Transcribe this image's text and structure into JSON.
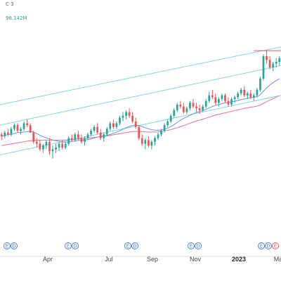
{
  "legend": {
    "header": "C·3",
    "value": "98.142M"
  },
  "colors": {
    "up": "#26a69a",
    "down": "#ef5350",
    "channel": "#7fd4e6",
    "ma_fast": "#6f8fe6",
    "ma_slow": "#ef6f8a",
    "axis": "#dddddd",
    "earnings_blue": "#4b80c9",
    "earnings_red": "#e05a5a"
  },
  "x_axis_labels": [
    {
      "text": "Apr",
      "bold": false
    },
    {
      "text": "Jul",
      "bold": false
    },
    {
      "text": "Sep",
      "bold": false
    },
    {
      "text": "Nov",
      "bold": false
    },
    {
      "text": "2023",
      "bold": true
    },
    {
      "text": "Ma",
      "bold": false
    }
  ],
  "events": [
    {
      "kind": "earnings",
      "color_key": "earnings_blue"
    },
    {
      "kind": "dividend",
      "color_key": "earnings_blue"
    },
    {
      "kind": "earnings",
      "color_key": "earnings_blue"
    },
    {
      "kind": "dividend",
      "color_key": "earnings_blue"
    },
    {
      "kind": "earnings",
      "color_key": "earnings_blue"
    },
    {
      "kind": "dividend",
      "color_key": "earnings_blue"
    },
    {
      "kind": "earnings",
      "color_key": "earnings_blue"
    },
    {
      "kind": "dividend",
      "color_key": "earnings_blue"
    },
    {
      "kind": "earnings",
      "color_key": "earnings_blue"
    },
    {
      "kind": "dividend",
      "color_key": "earnings_blue"
    },
    {
      "kind": "earnings",
      "color_key": "earnings_red"
    },
    {
      "kind": "dividend",
      "color_key": "earnings_blue"
    },
    {
      "kind": "earnings",
      "color_key": "earnings_blue"
    }
  ],
  "event_letters": {
    "earnings": "E",
    "dividend": "D"
  },
  "chart_data": {
    "type": "candlestick",
    "y_range": [
      0,
      100
    ],
    "candles": [
      [
        41,
        42,
        38,
        40
      ],
      [
        40,
        43,
        39,
        42
      ],
      [
        42,
        44,
        40,
        41
      ],
      [
        41,
        45,
        40,
        44
      ],
      [
        44,
        47,
        43,
        46
      ],
      [
        46,
        47,
        42,
        43
      ],
      [
        43,
        45,
        41,
        44
      ],
      [
        44,
        48,
        43,
        47
      ],
      [
        47,
        49,
        45,
        46
      ],
      [
        46,
        47,
        42,
        42
      ],
      [
        42,
        43,
        36,
        37
      ],
      [
        37,
        39,
        34,
        36
      ],
      [
        36,
        38,
        32,
        33
      ],
      [
        33,
        36,
        31,
        35
      ],
      [
        35,
        38,
        33,
        37
      ],
      [
        37,
        39,
        30,
        32
      ],
      [
        32,
        35,
        28,
        33
      ],
      [
        33,
        36,
        31,
        34
      ],
      [
        34,
        37,
        32,
        36
      ],
      [
        36,
        38,
        33,
        34
      ],
      [
        34,
        37,
        33,
        36
      ],
      [
        36,
        40,
        35,
        39
      ],
      [
        39,
        41,
        37,
        38
      ],
      [
        38,
        42,
        37,
        41
      ],
      [
        41,
        43,
        38,
        39
      ],
      [
        39,
        41,
        36,
        37
      ],
      [
        37,
        40,
        35,
        39
      ],
      [
        39,
        42,
        38,
        41
      ],
      [
        41,
        44,
        40,
        43
      ],
      [
        43,
        46,
        42,
        45
      ],
      [
        45,
        47,
        41,
        42
      ],
      [
        42,
        44,
        38,
        39
      ],
      [
        39,
        42,
        37,
        41
      ],
      [
        41,
        45,
        40,
        44
      ],
      [
        44,
        48,
        43,
        47
      ],
      [
        47,
        49,
        44,
        45
      ],
      [
        45,
        48,
        44,
        47
      ],
      [
        47,
        51,
        46,
        50
      ],
      [
        50,
        53,
        48,
        51
      ],
      [
        51,
        54,
        49,
        53
      ],
      [
        53,
        55,
        50,
        51
      ],
      [
        51,
        53,
        47,
        48
      ],
      [
        48,
        50,
        44,
        45
      ],
      [
        45,
        46,
        38,
        39
      ],
      [
        39,
        41,
        35,
        36
      ],
      [
        36,
        39,
        33,
        38
      ],
      [
        38,
        40,
        34,
        35
      ],
      [
        35,
        38,
        33,
        37
      ],
      [
        37,
        40,
        35,
        39
      ],
      [
        39,
        42,
        38,
        41
      ],
      [
        41,
        44,
        40,
        43
      ],
      [
        43,
        47,
        42,
        46
      ],
      [
        46,
        49,
        45,
        48
      ],
      [
        48,
        52,
        47,
        51
      ],
      [
        51,
        55,
        50,
        54
      ],
      [
        54,
        58,
        53,
        57
      ],
      [
        57,
        59,
        55,
        56
      ],
      [
        56,
        58,
        52,
        53
      ],
      [
        53,
        56,
        52,
        55
      ],
      [
        55,
        59,
        54,
        58
      ],
      [
        58,
        60,
        55,
        56
      ],
      [
        56,
        58,
        53,
        55
      ],
      [
        55,
        57,
        52,
        54
      ],
      [
        54,
        57,
        53,
        56
      ],
      [
        56,
        60,
        55,
        59
      ],
      [
        59,
        64,
        58,
        62
      ],
      [
        62,
        65,
        60,
        61
      ],
      [
        61,
        63,
        57,
        58
      ],
      [
        58,
        61,
        56,
        60
      ],
      [
        60,
        63,
        59,
        62
      ],
      [
        62,
        63,
        58,
        59
      ],
      [
        59,
        61,
        56,
        57
      ],
      [
        57,
        61,
        56,
        60
      ],
      [
        60,
        62,
        58,
        61
      ],
      [
        61,
        64,
        60,
        63
      ],
      [
        63,
        66,
        62,
        65
      ],
      [
        65,
        67,
        61,
        62
      ],
      [
        62,
        64,
        60,
        63
      ],
      [
        63,
        65,
        60,
        61
      ],
      [
        61,
        63,
        59,
        62
      ],
      [
        62,
        66,
        61,
        65
      ],
      [
        65,
        72,
        64,
        71
      ],
      [
        71,
        84,
        70,
        83
      ],
      [
        83,
        86,
        79,
        81
      ],
      [
        81,
        83,
        76,
        77
      ],
      [
        77,
        80,
        75,
        79
      ],
      [
        79,
        82,
        77,
        80
      ],
      [
        80,
        83,
        78,
        82
      ]
    ],
    "ma_fast": [
      40,
      40.5,
      41,
      41,
      41.5,
      42,
      42,
      42.3,
      42.5,
      42.6,
      42.2,
      41.5,
      40.6,
      39.8,
      39.2,
      38.6,
      38,
      37.6,
      37.3,
      37,
      36.9,
      37,
      37.2,
      37.5,
      37.8,
      37.9,
      38,
      38.2,
      38.6,
      39.1,
      39.6,
      39.9,
      40.1,
      40.5,
      41,
      41.6,
      42.2,
      43,
      43.8,
      44.6,
      45.3,
      45.8,
      46,
      45.8,
      45.2,
      44.6,
      44,
      43.6,
      43.3,
      43.2,
      43.4,
      43.8,
      44.4,
      45.2,
      46.2,
      47.4,
      48.6,
      49.6,
      50.4,
      51.3,
      52.1,
      52.8,
      53.3,
      53.8,
      54.4,
      55.2,
      56,
      56.6,
      57,
      57.5,
      57.9,
      58.2,
      58.5,
      58.8,
      59.2,
      59.7,
      60.1,
      60.4,
      60.7,
      60.9,
      61.2,
      62.3,
      64.2,
      66,
      67.6,
      68.8,
      69.9,
      71
    ],
    "ma_slow": [
      35,
      35.3,
      35.6,
      35.9,
      36.2,
      36.5,
      36.8,
      37.1,
      37.4,
      37.6,
      37.8,
      37.9,
      37.9,
      37.9,
      37.9,
      37.9,
      37.9,
      37.9,
      37.9,
      37.9,
      38,
      38.1,
      38.2,
      38.4,
      38.6,
      38.7,
      38.8,
      39,
      39.2,
      39.4,
      39.6,
      39.8,
      40,
      40.2,
      40.5,
      40.8,
      41.1,
      41.4,
      41.7,
      42,
      42.3,
      42.5,
      42.6,
      42.6,
      42.5,
      42.4,
      42.3,
      42.3,
      42.3,
      42.4,
      42.6,
      42.9,
      43.2,
      43.6,
      44.1,
      44.6,
      45.2,
      45.8,
      46.4,
      47,
      47.6,
      48.2,
      48.7,
      49.2,
      49.7,
      50.3,
      50.9,
      51.4,
      51.8,
      52.2,
      52.6,
      53,
      53.4,
      53.8,
      54.2,
      54.6,
      55,
      55.3,
      55.6,
      55.9,
      56.2,
      56.8,
      57.7,
      58.6,
      59.4,
      60.2,
      61,
      61.8
    ],
    "channel": {
      "lower_start": 30,
      "lower_end": 62,
      "upper_start": 57,
      "upper_end": 88,
      "mid_offset": 16
    },
    "resistance_level": 86
  }
}
